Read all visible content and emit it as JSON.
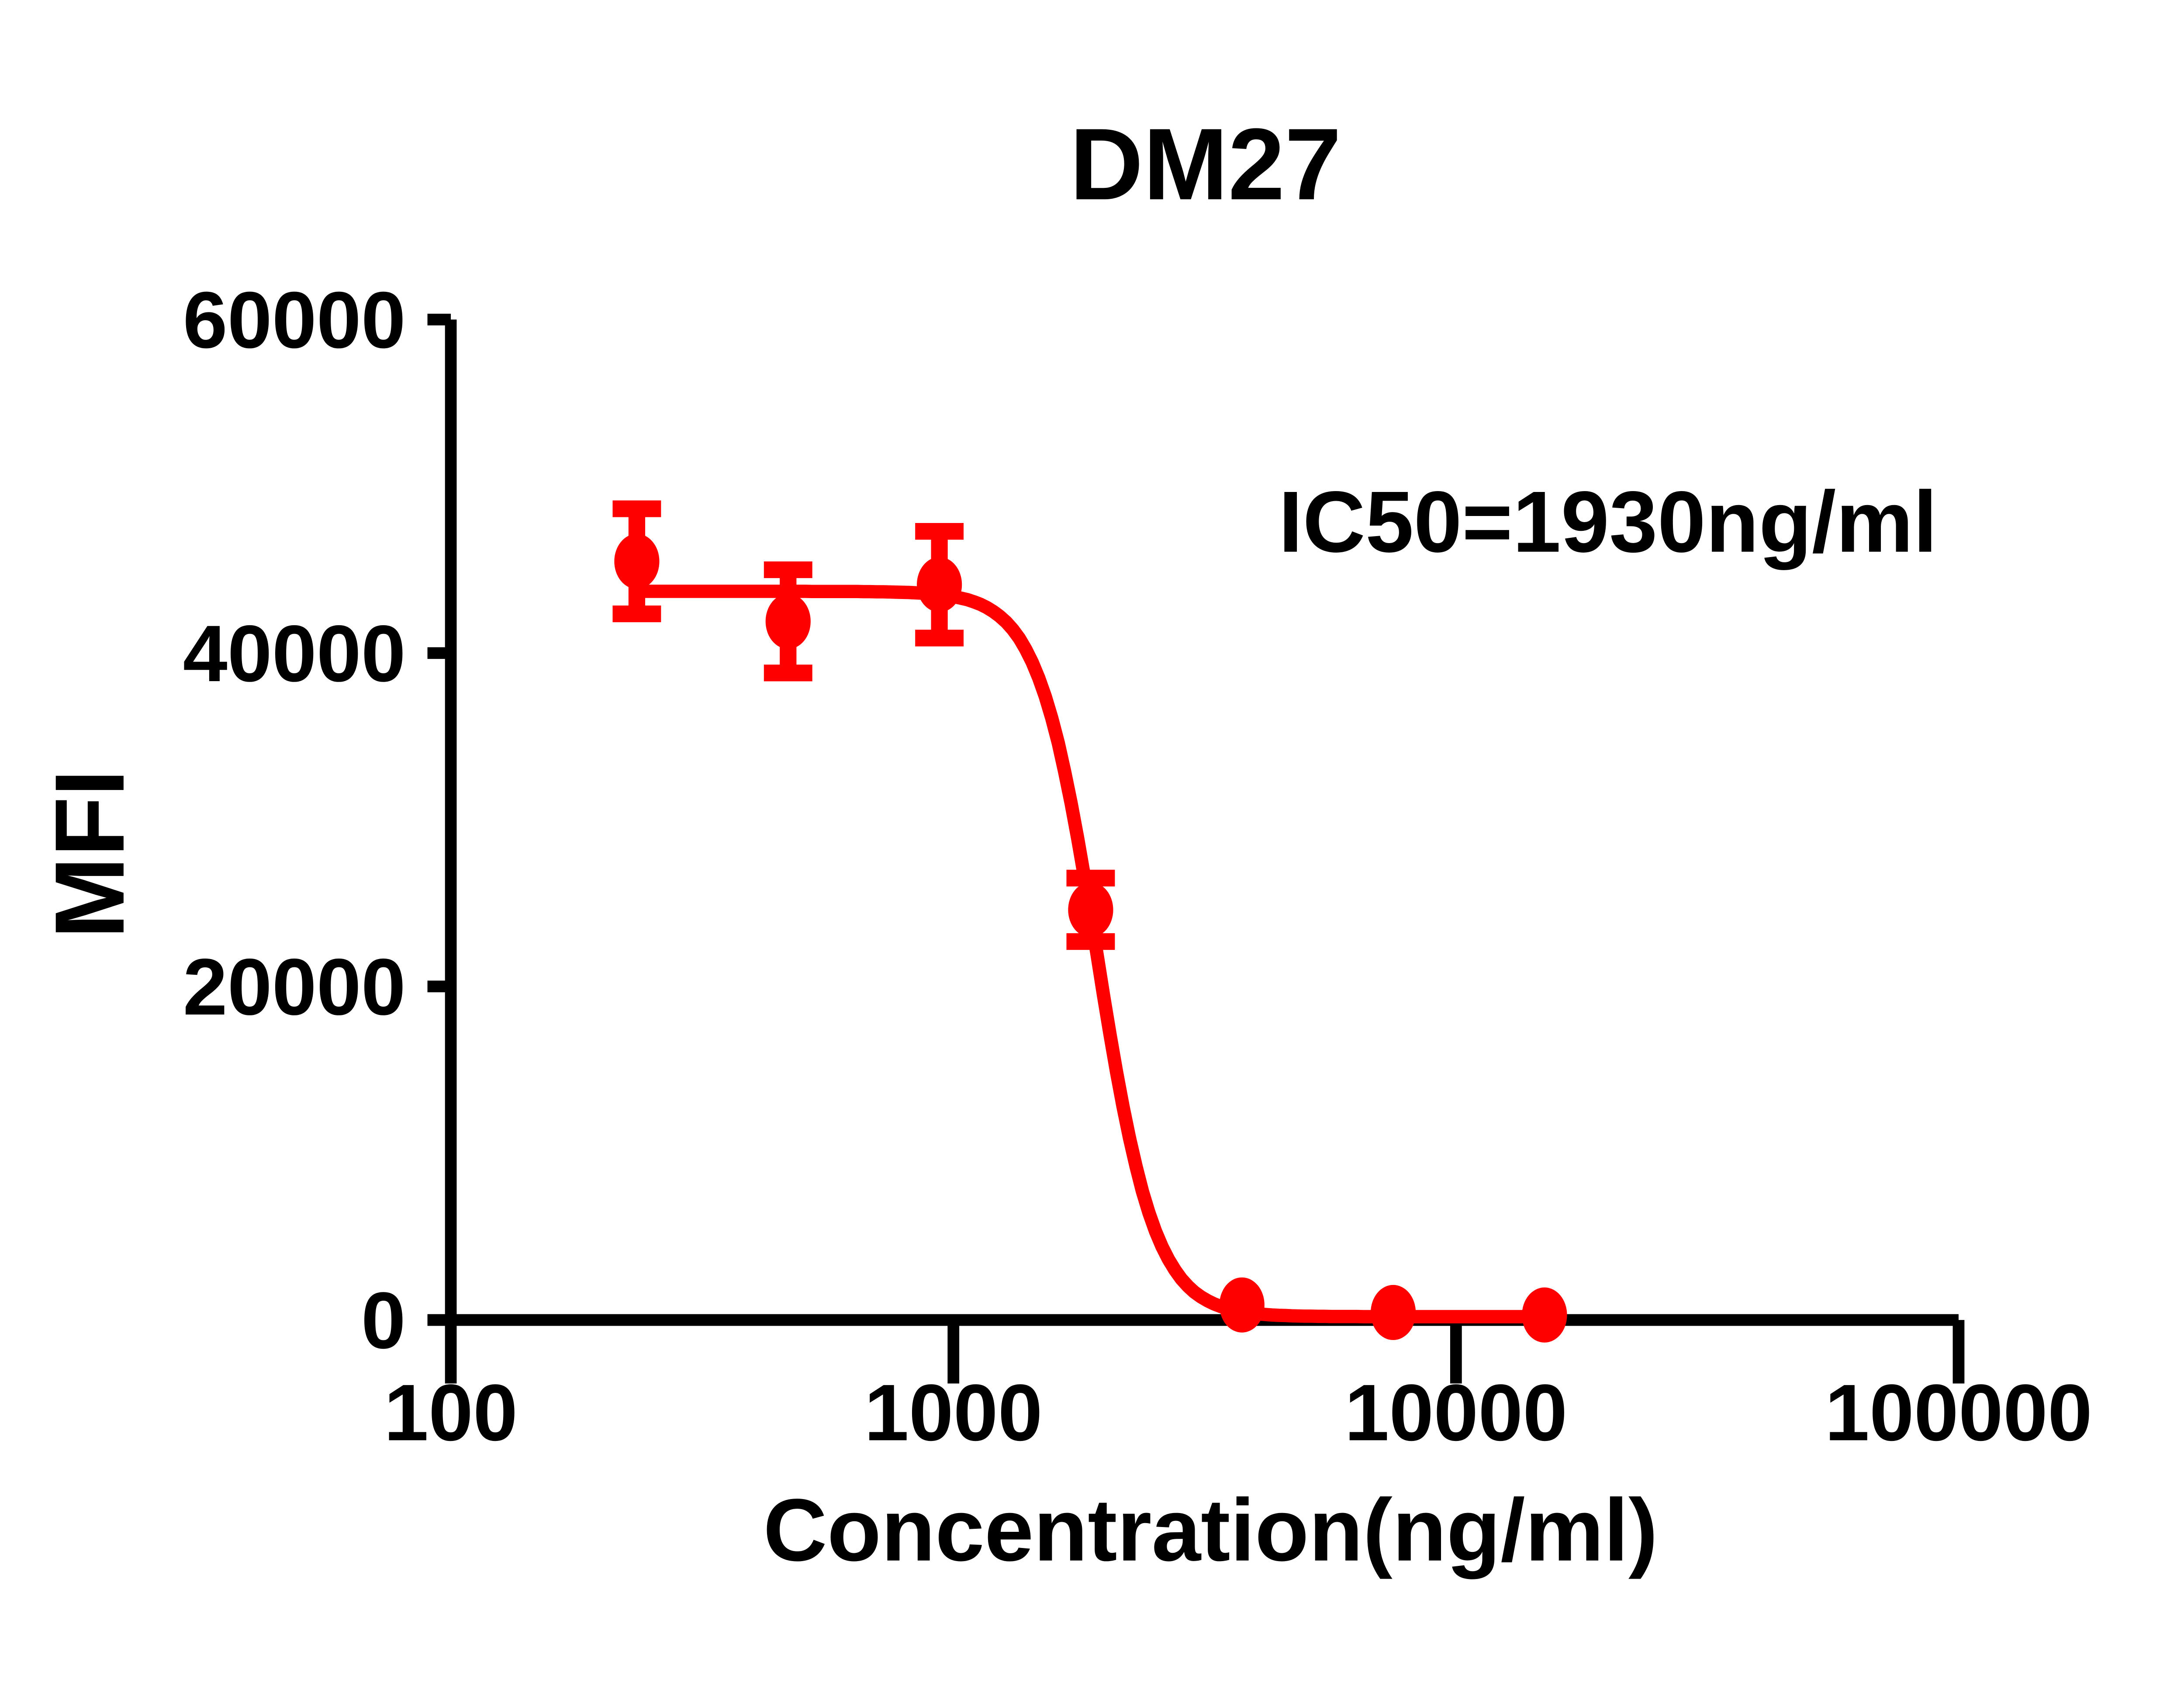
{
  "chart_data": {
    "type": "scatter",
    "title": "DM27",
    "annotation": "IC50=1930ng/ml",
    "xlabel": "Concentration(ng/ml)",
    "ylabel": "MFI",
    "x_scale": "log",
    "xlim": [
      100,
      100000
    ],
    "ylim": [
      0,
      60000
    ],
    "x_tick_values": [
      100,
      1000,
      10000,
      100000
    ],
    "x_tick_labels": [
      "100",
      "1000",
      "10000",
      "100000"
    ],
    "y_tick_values": [
      0,
      20000,
      40000,
      60000
    ],
    "y_tick_labels": [
      "0",
      "20000",
      "40000",
      "60000"
    ],
    "grid": false,
    "legend": "none",
    "background_color": "#FFFFFF",
    "axis_color": "#000000",
    "text_color": "#000000",
    "series": [
      {
        "name": "DM27",
        "color": "#FF0000",
        "marker": "filled-circle",
        "points": [
          {
            "conc_ng_ml": 234.4,
            "mfi": 45500,
            "err": 3150
          },
          {
            "conc_ng_ml": 468.8,
            "mfi": 41900,
            "err": 3100
          },
          {
            "conc_ng_ml": 937.5,
            "mfi": 44100,
            "err": 3200
          },
          {
            "conc_ng_ml": 1875,
            "mfi": 24600,
            "err": 1900
          },
          {
            "conc_ng_ml": 3750,
            "mfi": 900,
            "err": 0
          },
          {
            "conc_ng_ml": 7500,
            "mfi": 450,
            "err": 0
          },
          {
            "conc_ng_ml": 15000,
            "mfi": 300,
            "err": 0
          }
        ],
        "fit_curve": {
          "model": "four-parameter-logistic",
          "top": 43700,
          "bottom": 200,
          "ic50": 1930,
          "hill_slope": 7.5,
          "x_start": 234.4,
          "x_end": 15000
        }
      }
    ]
  }
}
